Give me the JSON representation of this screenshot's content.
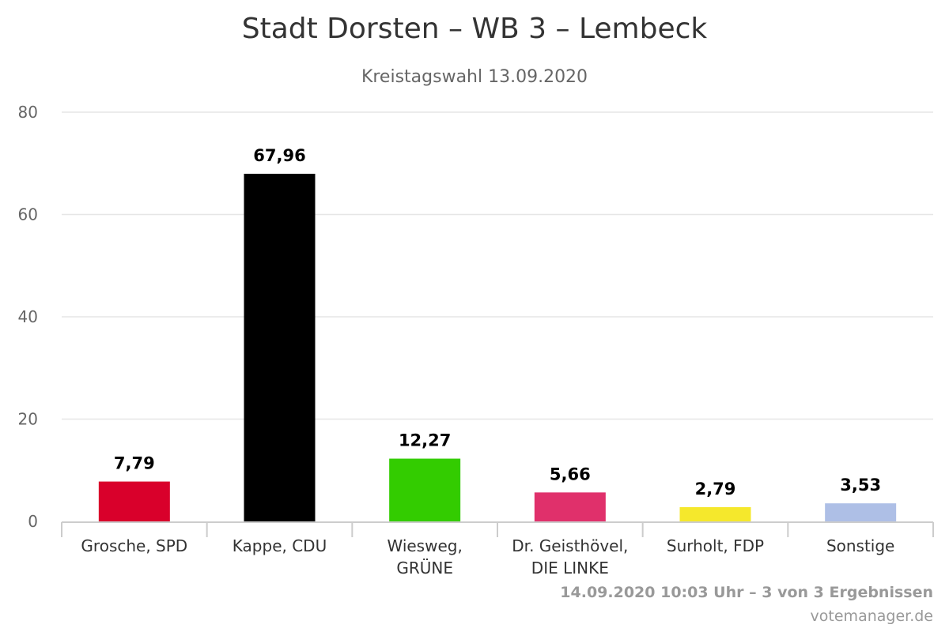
{
  "chart_data": {
    "type": "bar",
    "title": "Stadt Dorsten – WB 3 – Lembeck",
    "subtitle": "Kreistagswahl 13.09.2020",
    "categories": [
      [
        "Grosche, SPD"
      ],
      [
        "Kappe, CDU"
      ],
      [
        "Wiesweg,",
        "GRÜNE"
      ],
      [
        "Dr. Geisthövel,",
        "DIE LINKE"
      ],
      [
        "Surholt, FDP"
      ],
      [
        "Sonstige"
      ]
    ],
    "values": [
      7.79,
      67.96,
      12.27,
      5.66,
      2.79,
      3.53
    ],
    "value_labels": [
      "7,79",
      "67,96",
      "12,27",
      "5,66",
      "2,79",
      "3,53"
    ],
    "colors": [
      "#d9002b",
      "#000000",
      "#33cc00",
      "#e0306b",
      "#f5e82c",
      "#aebfe6"
    ],
    "ylim": [
      0,
      80
    ],
    "yticks": [
      0,
      20,
      40,
      60,
      80
    ],
    "grid": true,
    "legend": "none",
    "footer": "14.09.2020 10:03 Uhr – 3 von 3 Ergebnissen",
    "credit": "votemanager.de"
  }
}
